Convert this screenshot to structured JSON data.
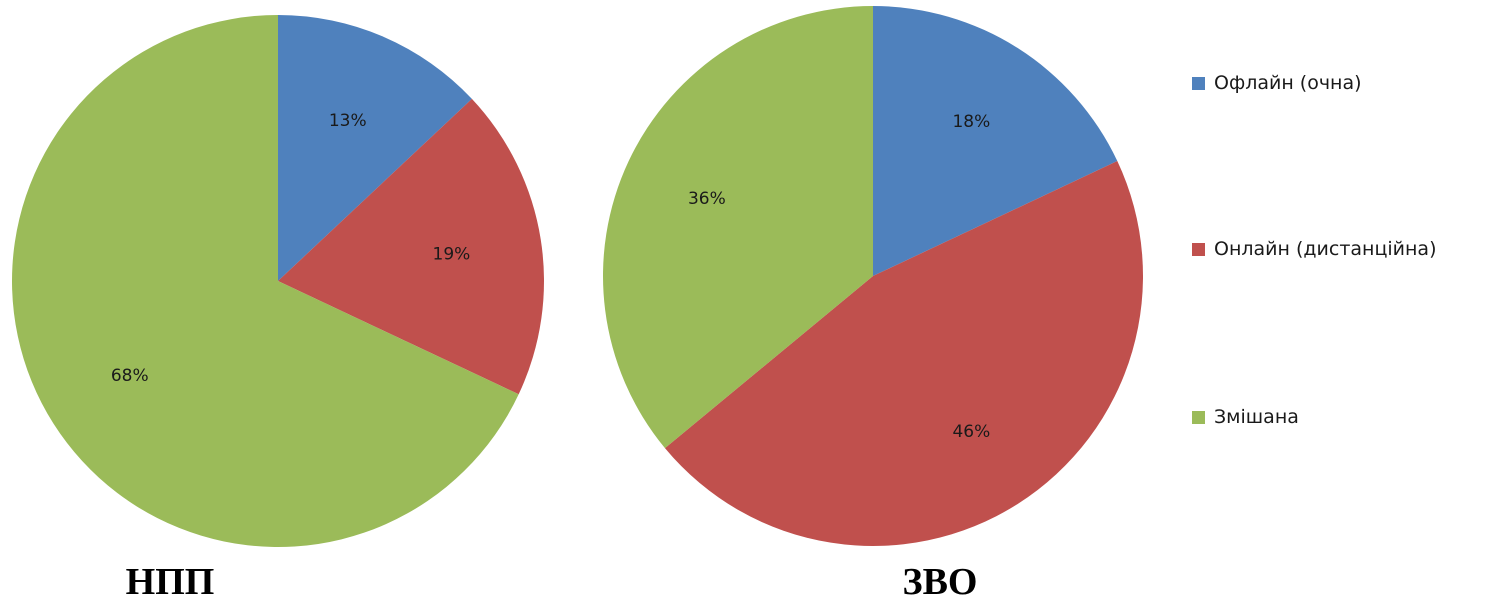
{
  "chart_data": [
    {
      "type": "pie",
      "title": "НПП",
      "categories": [
        "Офлайн (очна)",
        "Онлайн (дистанційна)",
        "Змішана"
      ],
      "values": [
        13,
        19,
        68
      ],
      "labels": [
        "13%",
        "19%",
        "68%"
      ]
    },
    {
      "type": "pie",
      "title": "ЗВО",
      "categories": [
        "Офлайн (очна)",
        "Онлайн (дистанційна)",
        "Змішана"
      ],
      "values": [
        18,
        46,
        36
      ],
      "labels": [
        "18%",
        "46%",
        "36%"
      ]
    }
  ],
  "legend": {
    "placement": "right",
    "items": [
      {
        "label": "Офлайн (очна)",
        "color": "#4f81bd"
      },
      {
        "label": "Онлайн (дистанційна)",
        "color": "#c0504d"
      },
      {
        "label": "Змішана",
        "color": "#9bbb59"
      }
    ]
  },
  "colors": [
    "#4f81bd",
    "#c0504d",
    "#9bbb59"
  ]
}
